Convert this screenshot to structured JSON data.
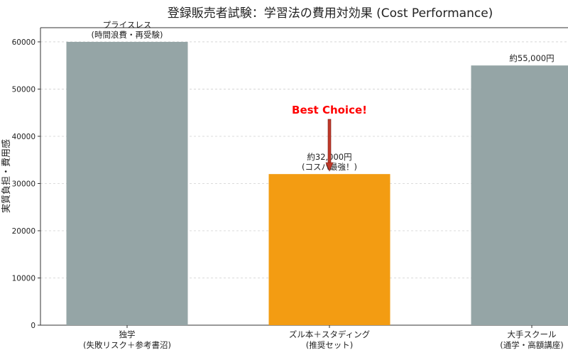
{
  "chart_data": {
    "type": "bar",
    "title": "登録販売者試験：学習法の費用対効果 (Cost Performance)",
    "xlabel": "",
    "ylabel": "実質負担・費用感",
    "ylim": [
      0,
      63000
    ],
    "yticks": [
      0,
      10000,
      20000,
      30000,
      40000,
      50000,
      60000
    ],
    "grid": true,
    "categories": [
      "独学\n(失敗リスク＋参考書沼)",
      "ズル本＋スタディング\n(推奨セット)",
      "大手スクール\n(通学・高額講座)"
    ],
    "values": [
      60000,
      32000,
      55000
    ],
    "bar_colors": [
      "#95a5a6",
      "#f39c12",
      "#95a5a6"
    ],
    "bar_labels": [
      "プライスレス\n(時間浪費・再受験)",
      "約32,000円\n(コスパ最強！)",
      "約55,000円"
    ],
    "annotation": {
      "text": "Best Choice!",
      "color": "#ff0000",
      "arrow_color": "#c0392b",
      "target_category": 1
    }
  }
}
